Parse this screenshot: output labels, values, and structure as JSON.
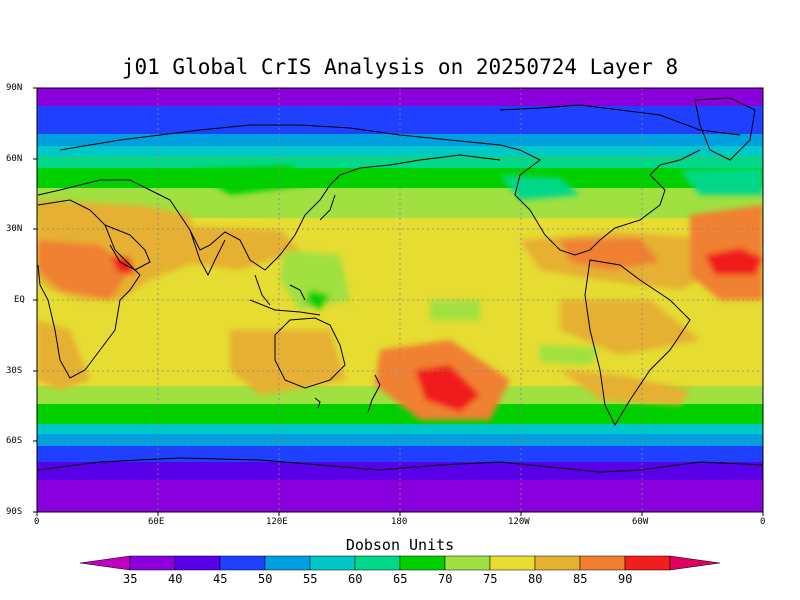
{
  "title": "j01 Global CrIS Analysis on 20250724 Layer 8",
  "colorbar": {
    "title": "Dobson Units",
    "labels": [
      "35",
      "40",
      "45",
      "50",
      "55",
      "60",
      "65",
      "70",
      "75",
      "80",
      "85",
      "90"
    ],
    "colors": [
      "#c000c0",
      "#8a00dc",
      "#5a00e8",
      "#2040ff",
      "#00a0e0",
      "#00c8c8",
      "#00d88a",
      "#00d000",
      "#a0e040",
      "#e6dc32",
      "#e6b030",
      "#f08030",
      "#f01e1e",
      "#e00060"
    ]
  },
  "axes": {
    "lat_labels": [
      "90N",
      "60N",
      "30N",
      "EQ",
      "30S",
      "60S",
      "90S"
    ],
    "lon_labels": [
      "0",
      "60E",
      "120E",
      "180",
      "120W",
      "60W",
      "0"
    ]
  }
}
